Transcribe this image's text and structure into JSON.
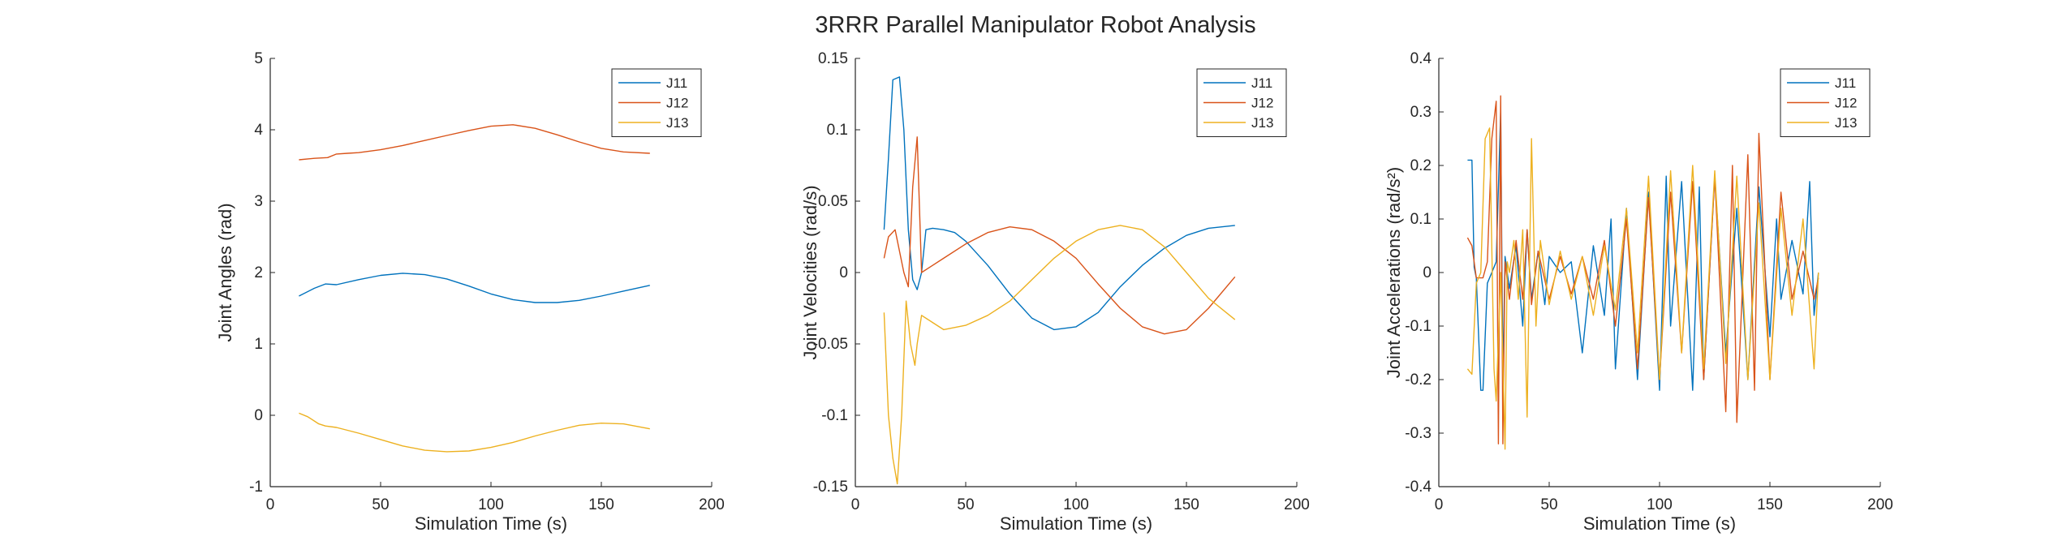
{
  "figure": {
    "title": "3RRR Parallel Manipulator Robot Analysis"
  },
  "colors": {
    "J11": "#0072BD",
    "J12": "#D95319",
    "J13": "#EDB120",
    "axis": "#262626"
  },
  "chart_data": [
    {
      "type": "line",
      "xlabel": "Simulation Time (s)",
      "ylabel": "Joint Angles (rad)",
      "xlim": [
        0,
        200
      ],
      "ylim": [
        -1,
        5
      ],
      "xticks": [
        "0",
        "50",
        "100",
        "150",
        "200"
      ],
      "yticks": [
        "-1",
        "0",
        "1",
        "2",
        "3",
        "4",
        "5"
      ],
      "legend_position": "top-right",
      "grid": false,
      "series": [
        {
          "name": "J11",
          "x": [
            13,
            20,
            25,
            30,
            40,
            50,
            60,
            70,
            80,
            90,
            100,
            110,
            120,
            130,
            140,
            150,
            160,
            172
          ],
          "y": [
            1.67,
            1.78,
            1.84,
            1.83,
            1.9,
            1.96,
            1.99,
            1.97,
            1.91,
            1.81,
            1.7,
            1.62,
            1.58,
            1.58,
            1.61,
            1.67,
            1.74,
            1.82
          ]
        },
        {
          "name": "J12",
          "x": [
            13,
            20,
            26,
            30,
            35,
            40,
            50,
            60,
            70,
            80,
            90,
            100,
            110,
            120,
            130,
            140,
            150,
            160,
            172
          ],
          "y": [
            3.58,
            3.6,
            3.61,
            3.66,
            3.67,
            3.68,
            3.72,
            3.78,
            3.85,
            3.92,
            3.99,
            4.05,
            4.07,
            4.02,
            3.93,
            3.83,
            3.74,
            3.69,
            3.67
          ]
        },
        {
          "name": "J13",
          "x": [
            13,
            17,
            22,
            25,
            30,
            40,
            50,
            60,
            70,
            80,
            90,
            100,
            110,
            120,
            130,
            140,
            150,
            160,
            172
          ],
          "y": [
            0.03,
            -0.02,
            -0.12,
            -0.15,
            -0.17,
            -0.25,
            -0.34,
            -0.43,
            -0.49,
            -0.51,
            -0.5,
            -0.45,
            -0.38,
            -0.29,
            -0.21,
            -0.14,
            -0.11,
            -0.12,
            -0.19
          ]
        }
      ]
    },
    {
      "type": "line",
      "xlabel": "Simulation Time (s)",
      "ylabel": "Joint Velocities (rad/s)",
      "xlim": [
        0,
        200
      ],
      "ylim": [
        -0.15,
        0.15
      ],
      "xticks": [
        "0",
        "50",
        "100",
        "150",
        "200"
      ],
      "yticks": [
        "-0.15",
        "-0.1",
        "-0.05",
        "0",
        "0.05",
        "0.1",
        "0.15"
      ],
      "legend_position": "top-right",
      "grid": false,
      "series": [
        {
          "name": "J11",
          "x": [
            13,
            15,
            17,
            20,
            22,
            24,
            26,
            28,
            30,
            32,
            35,
            40,
            45,
            50,
            60,
            70,
            80,
            90,
            100,
            110,
            120,
            130,
            140,
            150,
            160,
            172
          ],
          "y": [
            0.03,
            0.08,
            0.135,
            0.137,
            0.1,
            0.03,
            -0.005,
            -0.012,
            0.0,
            0.03,
            0.031,
            0.03,
            0.028,
            0.022,
            0.005,
            -0.015,
            -0.032,
            -0.04,
            -0.038,
            -0.028,
            -0.01,
            0.005,
            0.017,
            0.026,
            0.031,
            0.033
          ]
        },
        {
          "name": "J12",
          "x": [
            13,
            15,
            18,
            20,
            22,
            24,
            26,
            28,
            30,
            35,
            40,
            50,
            60,
            70,
            80,
            90,
            100,
            110,
            120,
            130,
            140,
            150,
            160,
            172
          ],
          "y": [
            0.01,
            0.025,
            0.03,
            0.015,
            0.0,
            -0.01,
            0.06,
            0.095,
            0.0,
            0.005,
            0.01,
            0.02,
            0.028,
            0.032,
            0.03,
            0.022,
            0.01,
            -0.008,
            -0.025,
            -0.038,
            -0.043,
            -0.04,
            -0.025,
            -0.003
          ]
        },
        {
          "name": "J13",
          "x": [
            13,
            15,
            17,
            19,
            21,
            23,
            25,
            27,
            28,
            30,
            35,
            40,
            50,
            60,
            70,
            80,
            90,
            100,
            110,
            120,
            130,
            140,
            150,
            160,
            172
          ],
          "y": [
            -0.028,
            -0.1,
            -0.13,
            -0.148,
            -0.1,
            -0.02,
            -0.05,
            -0.065,
            -0.05,
            -0.03,
            -0.035,
            -0.04,
            -0.037,
            -0.03,
            -0.02,
            -0.005,
            0.01,
            0.022,
            0.03,
            0.033,
            0.03,
            0.018,
            0.0,
            -0.018,
            -0.033
          ]
        }
      ]
    },
    {
      "type": "line",
      "xlabel": "Simulation Time (s)",
      "ylabel": "Joint Accelerations (rad/s²)",
      "xlim": [
        0,
        200
      ],
      "ylim": [
        -0.4,
        0.4
      ],
      "xticks": [
        "0",
        "50",
        "100",
        "150",
        "200"
      ],
      "yticks": [
        "-0.4",
        "-0.3",
        "-0.2",
        "-0.1",
        "0",
        "0.1",
        "0.2",
        "0.3",
        "0.4"
      ],
      "legend_position": "top-right",
      "grid": false,
      "series": [
        {
          "name": "J11",
          "x": [
            13,
            15,
            16,
            17,
            19,
            20,
            22,
            24,
            26,
            28,
            29,
            30,
            32,
            35,
            38,
            40,
            42,
            45,
            48,
            50,
            55,
            60,
            65,
            70,
            75,
            78,
            80,
            85,
            90,
            95,
            100,
            103,
            105,
            110,
            115,
            118,
            120,
            125,
            130,
            135,
            140,
            145,
            150,
            153,
            155,
            160,
            165,
            168,
            170,
            172
          ],
          "y": [
            0.21,
            0.21,
            0.01,
            -0.01,
            -0.22,
            -0.22,
            -0.02,
            0.0,
            0.02,
            0.3,
            -0.2,
            0.03,
            -0.03,
            0.05,
            -0.1,
            0.08,
            -0.05,
            0.04,
            -0.06,
            0.03,
            0.0,
            0.02,
            -0.15,
            0.05,
            -0.08,
            0.1,
            -0.18,
            0.12,
            -0.2,
            0.15,
            -0.22,
            0.18,
            -0.1,
            0.17,
            -0.22,
            0.16,
            -0.2,
            0.18,
            -0.15,
            0.12,
            -0.2,
            0.16,
            -0.12,
            0.1,
            -0.05,
            0.06,
            -0.04,
            0.17,
            -0.08,
            0.0
          ]
        },
        {
          "name": "J12",
          "x": [
            13,
            15,
            17,
            18,
            20,
            22,
            24,
            26,
            27,
            28,
            29,
            30,
            32,
            35,
            38,
            40,
            42,
            45,
            50,
            55,
            60,
            65,
            70,
            75,
            80,
            85,
            90,
            95,
            100,
            105,
            110,
            115,
            120,
            125,
            130,
            133,
            135,
            140,
            143,
            145,
            150,
            155,
            160,
            165,
            170,
            172
          ],
          "y": [
            0.065,
            0.05,
            -0.01,
            -0.01,
            -0.01,
            0.02,
            0.25,
            0.32,
            -0.32,
            0.33,
            -0.32,
            0.02,
            -0.05,
            0.06,
            -0.05,
            0.08,
            -0.06,
            0.04,
            -0.05,
            0.03,
            -0.04,
            0.03,
            -0.05,
            0.06,
            -0.1,
            0.1,
            -0.18,
            0.14,
            -0.2,
            0.15,
            -0.15,
            0.17,
            -0.2,
            0.18,
            -0.26,
            0.2,
            -0.28,
            0.22,
            -0.22,
            0.26,
            -0.2,
            0.15,
            -0.05,
            0.04,
            -0.05,
            -0.01
          ]
        },
        {
          "name": "J13",
          "x": [
            13,
            15,
            17,
            19,
            21,
            23,
            25,
            26,
            28,
            30,
            31,
            32,
            34,
            36,
            38,
            40,
            42,
            44,
            46,
            50,
            55,
            60,
            65,
            70,
            75,
            80,
            85,
            90,
            95,
            100,
            105,
            110,
            115,
            120,
            125,
            130,
            135,
            140,
            145,
            150,
            155,
            160,
            165,
            170,
            172
          ],
          "y": [
            -0.18,
            -0.19,
            -0.02,
            0.0,
            0.25,
            0.27,
            -0.18,
            -0.24,
            0.0,
            -0.33,
            0.02,
            0.0,
            0.06,
            -0.05,
            0.08,
            -0.27,
            0.25,
            -0.1,
            0.06,
            -0.06,
            0.04,
            -0.05,
            0.03,
            -0.08,
            0.05,
            -0.07,
            0.12,
            -0.15,
            0.18,
            -0.2,
            0.19,
            -0.15,
            0.2,
            -0.18,
            0.19,
            -0.17,
            0.18,
            -0.2,
            0.13,
            -0.2,
            0.12,
            -0.08,
            0.1,
            -0.18,
            0.0
          ]
        }
      ]
    }
  ]
}
